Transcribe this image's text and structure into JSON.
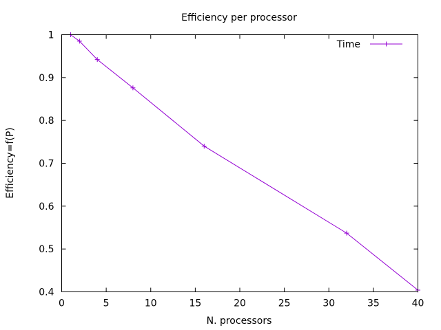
{
  "chart_data": {
    "type": "line",
    "title": "Efficiency per processor",
    "xlabel": "N. processors",
    "ylabel": "Efficiency=f(P)",
    "xlim": [
      0,
      40
    ],
    "ylim": [
      0.4,
      1.0
    ],
    "xticks": [
      0,
      5,
      10,
      15,
      20,
      25,
      30,
      35,
      40
    ],
    "yticks": [
      0.4,
      0.5,
      0.6,
      0.7,
      0.8,
      0.9,
      1.0
    ],
    "xtick_labels": [
      "0",
      "5",
      "10",
      "15",
      "20",
      "25",
      "30",
      "35",
      "40"
    ],
    "ytick_labels": [
      "0.4",
      "0.5",
      "0.6",
      "0.7",
      "0.8",
      "0.9",
      "1"
    ],
    "grid": false,
    "legend_position": "top-right",
    "series": [
      {
        "name": "Time",
        "color": "#9400d3",
        "marker": "plus",
        "x": [
          1,
          2,
          4,
          8,
          16,
          32,
          40
        ],
        "y": [
          1.0,
          0.985,
          0.942,
          0.876,
          0.74,
          0.537,
          0.404
        ]
      }
    ]
  }
}
